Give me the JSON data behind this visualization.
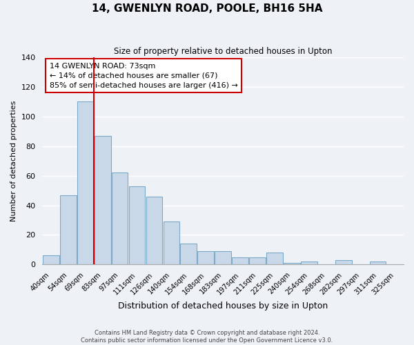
{
  "title": "14, GWENLYN ROAD, POOLE, BH16 5HA",
  "subtitle": "Size of property relative to detached houses in Upton",
  "xlabel": "Distribution of detached houses by size in Upton",
  "ylabel": "Number of detached properties",
  "bar_labels": [
    "40sqm",
    "54sqm",
    "69sqm",
    "83sqm",
    "97sqm",
    "111sqm",
    "126sqm",
    "140sqm",
    "154sqm",
    "168sqm",
    "183sqm",
    "197sqm",
    "211sqm",
    "225sqm",
    "240sqm",
    "254sqm",
    "268sqm",
    "282sqm",
    "297sqm",
    "311sqm",
    "325sqm"
  ],
  "bar_values": [
    6,
    47,
    110,
    87,
    62,
    53,
    46,
    29,
    14,
    9,
    9,
    5,
    5,
    8,
    1,
    2,
    0,
    3,
    0,
    2,
    0
  ],
  "bar_color": "#c8d8e8",
  "bar_edge_color": "#7aaac8",
  "vline_x_index": 2,
  "vline_color": "#cc0000",
  "annotation_title": "14 GWENLYN ROAD: 73sqm",
  "annotation_line1": "← 14% of detached houses are smaller (67)",
  "annotation_line2": "85% of semi-detached houses are larger (416) →",
  "ylim": [
    0,
    140
  ],
  "yticks": [
    0,
    20,
    40,
    60,
    80,
    100,
    120,
    140
  ],
  "footer_line1": "Contains HM Land Registry data © Crown copyright and database right 2024.",
  "footer_line2": "Contains public sector information licensed under the Open Government Licence v3.0.",
  "bg_color": "#eef2f7"
}
